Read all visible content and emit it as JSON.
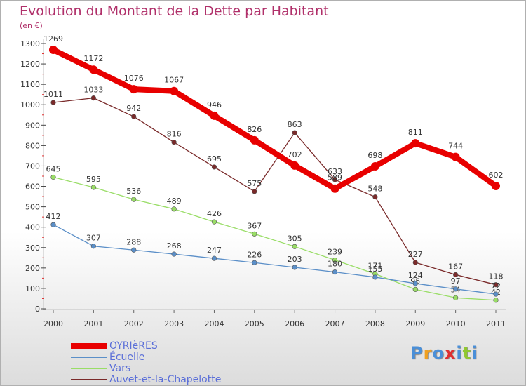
{
  "title": "Evolution du Montant de la Dette par Habitant",
  "subtitle": "(en €)",
  "chart_data": {
    "type": "line",
    "x": [
      "2000",
      "2001",
      "2002",
      "2003",
      "2004",
      "2005",
      "2006",
      "2007",
      "2008",
      "2009",
      "2010",
      "2011"
    ],
    "ylim": [
      0,
      1300
    ],
    "yticks": [
      0,
      100,
      200,
      300,
      400,
      500,
      600,
      700,
      800,
      900,
      1000,
      1100,
      1200,
      1300
    ],
    "grid": false,
    "legend_position": "bottom-left",
    "series": [
      {
        "name": "OYRIèRES",
        "color": "#e80000",
        "values": [
          1269,
          1172,
          1076,
          1067,
          946,
          826,
          702,
          589,
          698,
          811,
          744,
          602
        ]
      },
      {
        "name": "Écuelle",
        "color": "#5b8fc8",
        "values": [
          412,
          307,
          288,
          268,
          247,
          226,
          203,
          180,
          155,
          124,
          97,
          72
        ]
      },
      {
        "name": "Vars",
        "color": "#99dd66",
        "values": [
          645,
          595,
          536,
          489,
          426,
          367,
          305,
          239,
          171,
          95,
          54,
          42
        ]
      },
      {
        "name": "Auvet-et-la-Chapelotte",
        "color": "#7a2a2a",
        "values": [
          1011,
          1033,
          942,
          816,
          695,
          575,
          863,
          633,
          548,
          227,
          167,
          118
        ]
      }
    ]
  },
  "logo": {
    "letters": [
      "P",
      "r",
      "o",
      "x",
      "i",
      "t",
      "i"
    ],
    "colors": [
      "#4a8fd8",
      "#f0a020",
      "#4a8fd8",
      "#e03030",
      "#4a8fd8",
      "#90c830",
      "#4a8fd8"
    ]
  }
}
